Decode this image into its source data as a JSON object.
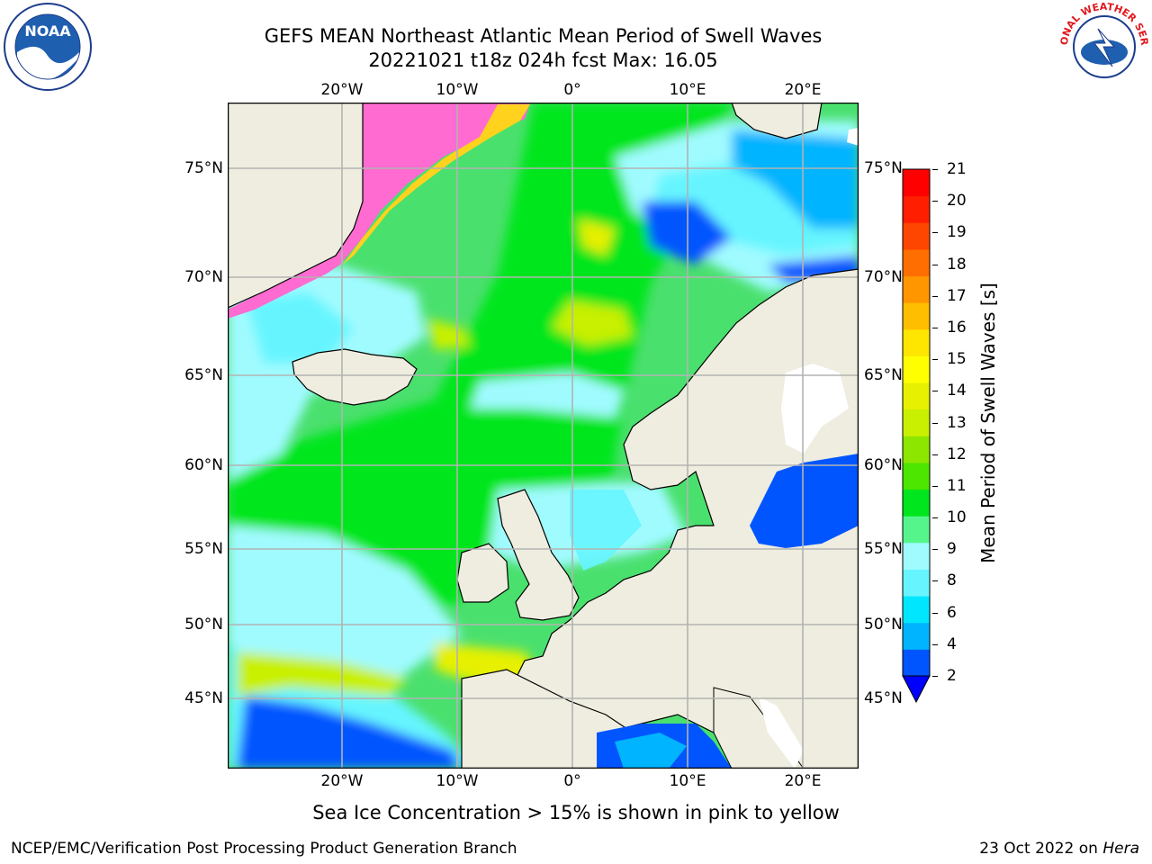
{
  "title": {
    "line1": "GEFS MEAN Northeast Atlantic Mean Period of Swell Waves",
    "line2": "20221021 t18z 024h fcst   Max: 16.05"
  },
  "lon_labels": [
    "20°W",
    "10°W",
    "0°",
    "10°E",
    "20°E"
  ],
  "lat_labels": [
    "75°N",
    "70°N",
    "65°N",
    "60°N",
    "55°N",
    "50°N",
    "45°N"
  ],
  "colorbar": {
    "label": "Mean Period of Swell Waves [s]",
    "ticks": [
      "21",
      "20",
      "19",
      "18",
      "17",
      "16",
      "15",
      "14",
      "13",
      "12",
      "11",
      "10",
      "9",
      "8",
      "6",
      "4",
      "2"
    ],
    "min": 2,
    "max": 21,
    "extend": "min",
    "colors": [
      "#0055ff",
      "#00b4ff",
      "#00e6ff",
      "#66f5ff",
      "#a0fbff",
      "#55f58c",
      "#00e61e",
      "#4ce600",
      "#8ce600",
      "#c8f000",
      "#e6f000",
      "#ffff00",
      "#ffe600",
      "#ffbe00",
      "#ff9600",
      "#ff6e00",
      "#ff4600",
      "#ff1e00",
      "#ff0000"
    ]
  },
  "map_colors": {
    "land": "#eeeddf",
    "ice": "#ff6bd1",
    "ice_edge": "#ffd21e",
    "grid": "#b3b3b3"
  },
  "footnote": "Sea Ice Concentration > 15% is shown in pink to yellow",
  "credit": {
    "left": "NCEP/EMC/Verification Post Processing Product Generation Branch",
    "date": "23 Oct 2022 on ",
    "machine": "Hera"
  },
  "logos": {
    "left": "NOAA",
    "right": "NATIONAL WEATHER SERVICE"
  }
}
